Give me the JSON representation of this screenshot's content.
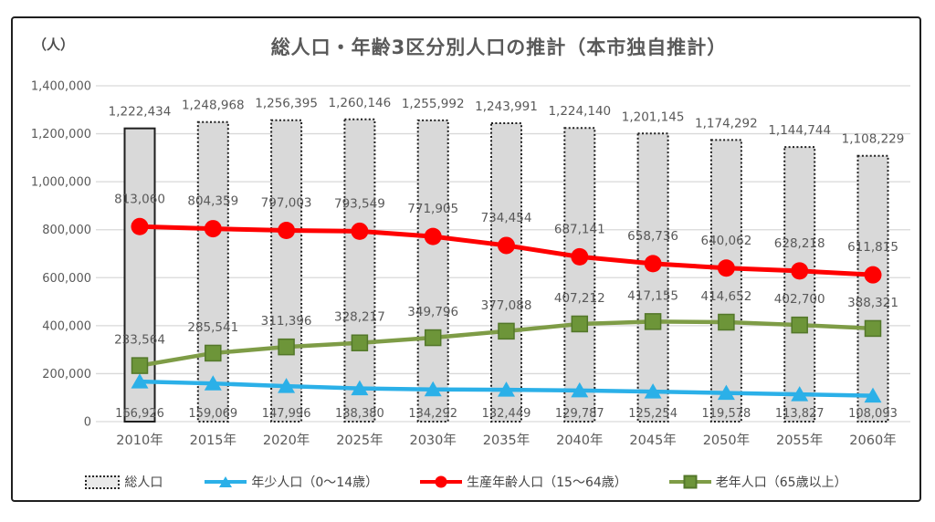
{
  "header": {
    "title": "総人口・年齢3区分別人口の推計（本市独自推計）",
    "unit_label": "（人）"
  },
  "chart_data": {
    "type": "bar",
    "subtype": "combo-bar-and-lines",
    "title": "総人口・年齢3区分別人口の推計（本市独自推計）",
    "xlabel": "",
    "ylabel": "（人）",
    "ylim": [
      0,
      1400000
    ],
    "ytick_step": 200000,
    "grid": "horizontal",
    "legend_position": "bottom",
    "categories": [
      "2010年",
      "2015年",
      "2020年",
      "2025年",
      "2030年",
      "2035年",
      "2040年",
      "2045年",
      "2050年",
      "2055年",
      "2060年"
    ],
    "series": [
      {
        "name": "総人口",
        "type": "bar",
        "color": "#d9d9d9",
        "border_color": "#1f1f1f",
        "border_style_first": "solid",
        "border_style_rest": "dotted",
        "values": [
          1222434,
          1248968,
          1256395,
          1260146,
          1255992,
          1243991,
          1224140,
          1201145,
          1174292,
          1144744,
          1108229
        ]
      },
      {
        "name": "年少人口（0～14歳）",
        "type": "line",
        "marker": "triangle",
        "color": "#2bb0e8",
        "values": [
          166926,
          159069,
          147996,
          138380,
          134292,
          132449,
          129787,
          125254,
          119578,
          113827,
          108093
        ]
      },
      {
        "name": "生産年齢人口（15～64歳）",
        "type": "line",
        "marker": "circle",
        "color": "#ff0000",
        "values": [
          813060,
          804359,
          797003,
          793549,
          771905,
          734454,
          687141,
          658736,
          640062,
          628218,
          611815
        ]
      },
      {
        "name": "老年人口（65歳以上）",
        "type": "line",
        "marker": "square",
        "color": "#7e9c46",
        "marker_color": "#6d9539",
        "marker_border": "#53772a",
        "values": [
          233564,
          285541,
          311396,
          328217,
          349796,
          377088,
          407212,
          417155,
          414652,
          402700,
          388321
        ]
      }
    ],
    "label_color": "#595959",
    "axis_color": "#595959",
    "gridline_color": "#d9d9d9"
  },
  "legend": {
    "items": [
      {
        "label": "総人口",
        "swatch": "dotted-box"
      },
      {
        "label": "年少人口（0～14歳）",
        "swatch": "triangle-line"
      },
      {
        "label": "生産年齢人口（15～64歳）",
        "swatch": "circle-line"
      },
      {
        "label": "老年人口（65歳以上）",
        "swatch": "square-line"
      }
    ]
  }
}
